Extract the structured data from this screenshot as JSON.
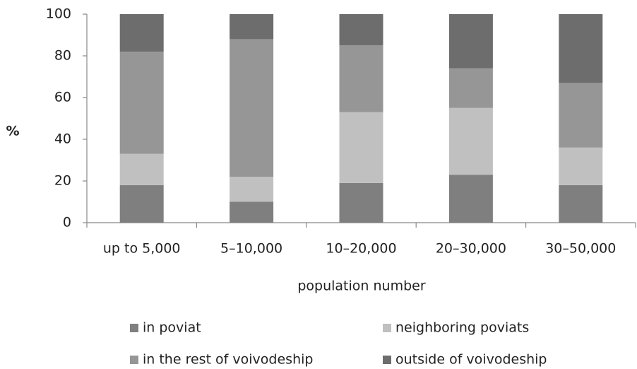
{
  "chart_data": {
    "type": "stacked_bar",
    "x_label": "population number",
    "y_label": "%",
    "categories": [
      "up to 5,000",
      "5–10,000",
      "10–20,000",
      "20–30,000",
      "30–50,000"
    ],
    "series": [
      {
        "name": "in poviat",
        "color": "#7f7f7f",
        "values": [
          18,
          10,
          19,
          23,
          18
        ]
      },
      {
        "name": "neighboring poviats",
        "color": "#c0c0c0",
        "values": [
          15,
          12,
          34,
          32,
          18
        ]
      },
      {
        "name": "in the rest of voivodeship",
        "color": "#969696",
        "values": [
          49,
          66,
          32,
          19,
          31
        ]
      },
      {
        "name": "outside of voivodeship",
        "color": "#6d6d6d",
        "values": [
          18,
          12,
          15,
          26,
          33
        ]
      }
    ],
    "ylim": [
      0,
      100
    ],
    "yticks": [
      0,
      20,
      40,
      60,
      80,
      100
    ],
    "grid": false,
    "legend": "bottom"
  }
}
